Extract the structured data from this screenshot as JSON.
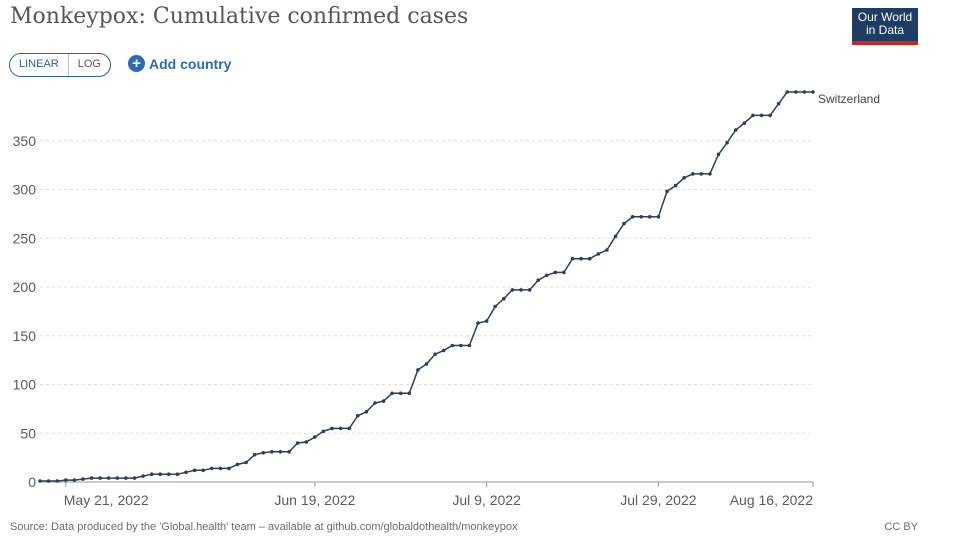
{
  "header": {
    "title": "Monkeypox: Cumulative confirmed cases",
    "logo_line1": "Our World",
    "logo_line2": "in Data"
  },
  "controls": {
    "linear_label": "LINEAR",
    "log_label": "LOG",
    "add_country_label": "Add country"
  },
  "footer": {
    "source": "Source: Data produced by the 'Global.health' team – available at github.com/globaldothealth/monkeypox",
    "license": "CC BY"
  },
  "colors": {
    "line": "#2f3f58",
    "brand": "#1d3d63",
    "accent": "#ce261e",
    "link": "#2a6ab8"
  },
  "chart_data": {
    "type": "line",
    "title": "Monkeypox: Cumulative confirmed cases",
    "x_start": "2022-05-18",
    "x_end": "2022-08-16",
    "x_tick_labels": [
      "May 21, 2022",
      "Jun 19, 2022",
      "Jul 9, 2022",
      "Jul 29, 2022",
      "Aug 16, 2022"
    ],
    "x_tick_dates": [
      "2022-05-21",
      "2022-06-19",
      "2022-07-09",
      "2022-07-29",
      "2022-08-16"
    ],
    "y_ticks": [
      0,
      50,
      100,
      150,
      200,
      250,
      300,
      350
    ],
    "ylim": [
      0,
      400
    ],
    "grid": true,
    "series": [
      {
        "name": "Switzerland",
        "x": [
          "2022-05-18",
          "2022-05-19",
          "2022-05-20",
          "2022-05-21",
          "2022-05-22",
          "2022-05-23",
          "2022-05-24",
          "2022-05-25",
          "2022-05-26",
          "2022-05-27",
          "2022-05-28",
          "2022-05-29",
          "2022-05-30",
          "2022-05-31",
          "2022-06-01",
          "2022-06-02",
          "2022-06-03",
          "2022-06-04",
          "2022-06-05",
          "2022-06-06",
          "2022-06-07",
          "2022-06-08",
          "2022-06-09",
          "2022-06-10",
          "2022-06-11",
          "2022-06-12",
          "2022-06-13",
          "2022-06-14",
          "2022-06-15",
          "2022-06-16",
          "2022-06-17",
          "2022-06-18",
          "2022-06-19",
          "2022-06-20",
          "2022-06-21",
          "2022-06-22",
          "2022-06-23",
          "2022-06-24",
          "2022-06-25",
          "2022-06-26",
          "2022-06-27",
          "2022-06-28",
          "2022-06-29",
          "2022-06-30",
          "2022-07-01",
          "2022-07-02",
          "2022-07-03",
          "2022-07-04",
          "2022-07-05",
          "2022-07-06",
          "2022-07-07",
          "2022-07-08",
          "2022-07-09",
          "2022-07-10",
          "2022-07-11",
          "2022-07-12",
          "2022-07-13",
          "2022-07-14",
          "2022-07-15",
          "2022-07-16",
          "2022-07-17",
          "2022-07-18",
          "2022-07-19",
          "2022-07-20",
          "2022-07-21",
          "2022-07-22",
          "2022-07-23",
          "2022-07-24",
          "2022-07-25",
          "2022-07-26",
          "2022-07-27",
          "2022-07-28",
          "2022-07-29",
          "2022-07-30",
          "2022-07-31",
          "2022-08-01",
          "2022-08-02",
          "2022-08-03",
          "2022-08-04",
          "2022-08-05",
          "2022-08-06",
          "2022-08-07",
          "2022-08-08",
          "2022-08-09",
          "2022-08-10",
          "2022-08-11",
          "2022-08-12",
          "2022-08-13",
          "2022-08-14",
          "2022-08-15",
          "2022-08-16"
        ],
        "values": [
          1,
          1,
          1,
          2,
          2,
          3,
          4,
          4,
          4,
          4,
          4,
          4,
          6,
          8,
          8,
          8,
          8,
          10,
          12,
          12,
          14,
          14,
          14,
          18,
          20,
          28,
          30,
          31,
          31,
          31,
          40,
          41,
          46,
          52,
          55,
          55,
          55,
          68,
          72,
          81,
          83,
          91,
          91,
          91,
          115,
          121,
          131,
          135,
          140,
          140,
          140,
          163,
          165,
          180,
          188,
          197,
          197,
          197,
          207,
          212,
          215,
          215,
          229,
          229,
          229,
          234,
          238,
          252,
          265,
          272,
          272,
          272,
          272,
          298,
          304,
          312,
          316,
          316,
          316,
          336,
          348,
          361,
          368,
          376,
          376,
          376,
          388,
          400,
          400,
          400,
          400
        ]
      }
    ]
  }
}
